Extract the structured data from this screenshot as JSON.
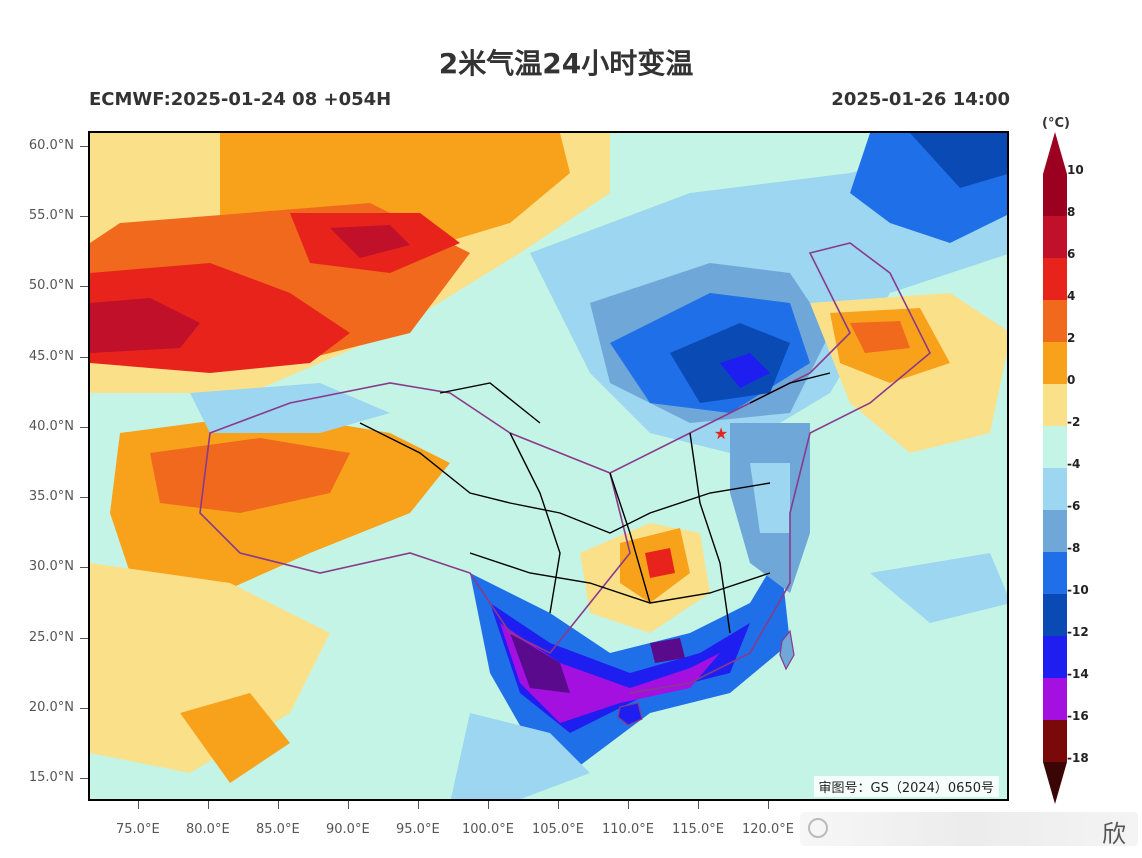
{
  "title": "2米气温24小时变温",
  "model_run": "ECMWF:2025-01-24 08 +054H",
  "valid_time": "2025-01-26 14:00",
  "approval_number": "审图号：GS（2024）0650号",
  "watermark_text": "欣",
  "lat_labels": [
    "60.0°N",
    "55.0°N",
    "50.0°N",
    "45.0°N",
    "40.0°N",
    "35.0°N",
    "30.0°N",
    "25.0°N",
    "20.0°N",
    "15.0°N"
  ],
  "lon_labels": [
    "75.0°E",
    "80.0°E",
    "85.0°E",
    "90.0°E",
    "95.0°E",
    "100.0°E",
    "105.0°E",
    "110.0°E",
    "115.0°E",
    "120.0°E"
  ],
  "colorbar": {
    "unit": "(°C)",
    "labels": [
      "10",
      "8",
      "6",
      "4",
      "2",
      "0",
      "-2",
      "-4",
      "-6",
      "-8",
      "-10",
      "-12",
      "-14",
      "-16",
      "-18"
    ],
    "colors": [
      "#9b0020",
      "#c0102a",
      "#e8231c",
      "#f0691c",
      "#f8a21c",
      "#fbe08a",
      "#c4f4e6",
      "#9cd6f0",
      "#6fa8d8",
      "#1f6fe8",
      "#0a4ab4",
      "#1e1ef0",
      "#a310e0",
      "#5a0a8c",
      "#7a0a0a",
      "#3a0505"
    ]
  },
  "markers": [
    {
      "name": "beijing-star",
      "symbol": "★",
      "color": "#e8231c"
    }
  ]
}
